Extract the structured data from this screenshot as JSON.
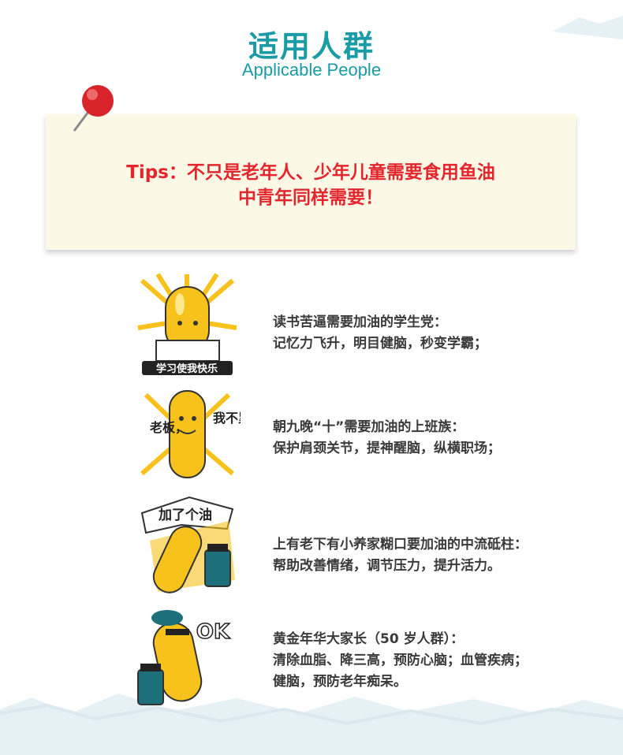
{
  "header": {
    "title_cn": "适用人群",
    "title_en": "Applicable People"
  },
  "tips": {
    "line1": "Tips：不只是老年人、少年儿童需要食用鱼油",
    "line2": "中青年同样需要！"
  },
  "groups": [
    {
      "badge": "学习使我快乐",
      "lines": [
        "读书苦逼需要加油的学生党：",
        "记忆力飞升，明目健脑，秒变学霸；"
      ]
    },
    {
      "badge_left": "老板，",
      "badge_right": "我不累",
      "lines": [
        "朝九晚“十”需要加油的上班族：",
        "保护肩颈关节，提神醒脑，纵横职场；"
      ]
    },
    {
      "badge": "加了个油",
      "lines": [
        "上有老下有小养家糊口要加油的中流砥柱：",
        "帮助改善情绪，调节压力，提升活力。"
      ]
    },
    {
      "badge": "OK",
      "lines": [
        "黄金年华大家长（50 岁人群）：",
        "清除血脂、降三高，预防心脑；血管疾病；",
        "健脑，预防老年痴呆。"
      ]
    }
  ],
  "colors": {
    "title": "#1a9ba5",
    "tips_text": "#e3262e",
    "card": "#fbf8e6",
    "body_text": "#3a3a3a",
    "capsule": "#f6c21b",
    "background": "#e6f1f6"
  },
  "icons": [
    "red-pin-icon",
    "capsule-student-icon",
    "capsule-worker-icon",
    "capsule-cheer-icon",
    "capsule-ok-icon"
  ]
}
